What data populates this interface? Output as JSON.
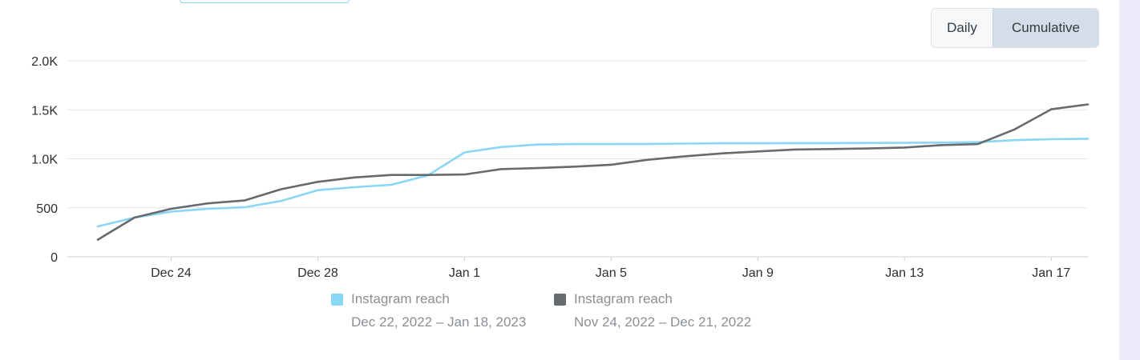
{
  "toggle": {
    "daily_label": "Daily",
    "cumulative_label": "Cumulative",
    "selected": "Cumulative"
  },
  "colors": {
    "current": "#8ad6f5",
    "previous": "#656b6e",
    "grid": "#e3e3e3"
  },
  "legend": [
    {
      "label": "Instagram reach",
      "range": "Dec 22, 2022 – Jan 18, 2023",
      "color": "#8ad6f5"
    },
    {
      "label": "Instagram reach",
      "range": "Nov 24, 2022 – Dec 21, 2022",
      "color": "#656b6e"
    }
  ],
  "chart_data": {
    "type": "line",
    "title": "",
    "xlabel": "",
    "ylabel": "",
    "ylim": [
      0,
      2000
    ],
    "y_ticks": [
      0,
      500,
      1000,
      1500,
      2000
    ],
    "y_tick_labels": [
      "0",
      "500",
      "1.0K",
      "1.5K",
      "2.0K"
    ],
    "x": [
      "Dec 22",
      "Dec 23",
      "Dec 24",
      "Dec 25",
      "Dec 26",
      "Dec 27",
      "Dec 28",
      "Dec 29",
      "Dec 30",
      "Dec 31",
      "Jan 1",
      "Jan 2",
      "Jan 3",
      "Jan 4",
      "Jan 5",
      "Jan 6",
      "Jan 7",
      "Jan 8",
      "Jan 9",
      "Jan 10",
      "Jan 11",
      "Jan 12",
      "Jan 13",
      "Jan 14",
      "Jan 15",
      "Jan 16",
      "Jan 17",
      "Jan 18"
    ],
    "x_tick_labels": [
      "Dec 24",
      "Dec 28",
      "Jan 1",
      "Jan 5",
      "Jan 9",
      "Jan 13",
      "Jan 17"
    ],
    "grid": true,
    "legend_position": "bottom",
    "series": [
      {
        "name": "Instagram reach",
        "values": [
          310,
          400,
          460,
          490,
          505,
          570,
          680,
          710,
          735,
          830,
          1065,
          1120,
          1145,
          1150,
          1150,
          1152,
          1155,
          1158,
          1158,
          1160,
          1160,
          1162,
          1163,
          1165,
          1170,
          1190,
          1200,
          1205
        ]
      },
      {
        "name": "Instagram reach",
        "values": [
          175,
          400,
          490,
          545,
          575,
          690,
          765,
          810,
          835,
          835,
          840,
          895,
          905,
          920,
          940,
          990,
          1025,
          1055,
          1075,
          1095,
          1100,
          1105,
          1115,
          1140,
          1150,
          1300,
          1505,
          1555
        ]
      }
    ]
  }
}
